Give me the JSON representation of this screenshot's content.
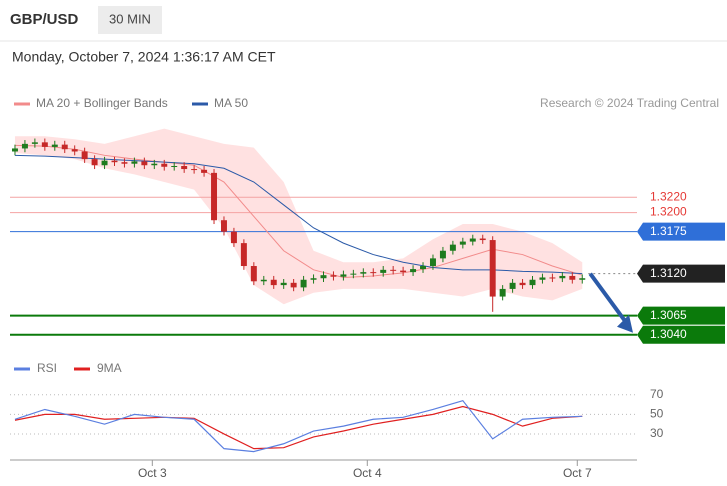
{
  "header": {
    "symbol": "GBP/USD",
    "interval": "30 MIN",
    "timestamp": "Monday, October 7, 2024 1:36:17 AM CET"
  },
  "chart_data": [
    {
      "type": "candlestick",
      "source": "Research © 2024 Trading Central",
      "xlim": [
        -0.5,
        62.5
      ],
      "ylim": [
        1.302,
        1.3354
      ],
      "xticks": [
        {
          "value": 13.8,
          "label": "Oct 3"
        },
        {
          "value": 35.4,
          "label": "Oct 4"
        },
        {
          "value": 56.5,
          "label": "Oct 7"
        }
      ],
      "up_color": "#1e7b1e",
      "down_color": "#c62828",
      "open": [
        1.328,
        1.3284,
        1.329,
        1.3292,
        1.3286,
        1.3289,
        1.3283,
        1.328,
        1.327,
        1.3262,
        1.3268,
        1.3266,
        1.3264,
        1.3267,
        1.3262,
        1.3264,
        1.326,
        1.3261,
        1.3257,
        1.3256,
        1.3252,
        1.319,
        1.3175,
        1.316,
        1.313,
        1.311,
        1.3112,
        1.3105,
        1.3108,
        1.3102,
        1.3112,
        1.3114,
        1.3118,
        1.3116,
        1.3119,
        1.312,
        1.3122,
        1.3121,
        1.3125,
        1.3124,
        1.3122,
        1.3126,
        1.313,
        1.314,
        1.315,
        1.3158,
        1.3162,
        1.3166,
        1.3164,
        1.309,
        1.31,
        1.3108,
        1.3105,
        1.3112,
        1.3115,
        1.3114,
        1.3117,
        1.3112
      ],
      "high": [
        1.3289,
        1.3295,
        1.3297,
        1.3297,
        1.3294,
        1.3294,
        1.3288,
        1.3285,
        1.3275,
        1.3273,
        1.3273,
        1.3271,
        1.3272,
        1.3272,
        1.3269,
        1.3269,
        1.3266,
        1.3266,
        1.3262,
        1.3261,
        1.3257,
        1.3195,
        1.318,
        1.3165,
        1.3135,
        1.3117,
        1.3117,
        1.3113,
        1.3113,
        1.3117,
        1.3119,
        1.3123,
        1.3123,
        1.3124,
        1.3125,
        1.3127,
        1.3127,
        1.313,
        1.313,
        1.3129,
        1.3131,
        1.3135,
        1.3145,
        1.3155,
        1.3163,
        1.3167,
        1.3171,
        1.3171,
        1.3169,
        1.3105,
        1.3113,
        1.3113,
        1.3117,
        1.312,
        1.312,
        1.3122,
        1.3122,
        1.3119
      ],
      "low": [
        1.3275,
        1.3279,
        1.3285,
        1.3281,
        1.3281,
        1.3278,
        1.3275,
        1.3265,
        1.3257,
        1.3257,
        1.3261,
        1.3259,
        1.3259,
        1.3257,
        1.3257,
        1.3255,
        1.3255,
        1.3252,
        1.3251,
        1.3247,
        1.3185,
        1.317,
        1.3155,
        1.3125,
        1.3105,
        1.3105,
        1.31,
        1.31,
        1.3097,
        1.3097,
        1.3107,
        1.3109,
        1.3111,
        1.3111,
        1.3114,
        1.3115,
        1.3116,
        1.3116,
        1.3119,
        1.3117,
        1.3117,
        1.3121,
        1.3125,
        1.3135,
        1.3145,
        1.3153,
        1.3157,
        1.3159,
        1.307,
        1.3085,
        1.3095,
        1.31,
        1.31,
        1.3107,
        1.3109,
        1.3109,
        1.3107,
        1.3107
      ],
      "close": [
        1.3284,
        1.329,
        1.3292,
        1.3286,
        1.3289,
        1.3283,
        1.328,
        1.327,
        1.3262,
        1.3268,
        1.3266,
        1.3264,
        1.3267,
        1.3262,
        1.3264,
        1.326,
        1.3261,
        1.3257,
        1.3256,
        1.3252,
        1.319,
        1.3175,
        1.316,
        1.313,
        1.311,
        1.3112,
        1.3105,
        1.3108,
        1.3102,
        1.3112,
        1.3114,
        1.3118,
        1.3116,
        1.3119,
        1.312,
        1.3122,
        1.3121,
        1.3125,
        1.3124,
        1.3122,
        1.3126,
        1.313,
        1.314,
        1.315,
        1.3158,
        1.3162,
        1.3166,
        1.3164,
        1.309,
        1.31,
        1.3108,
        1.3105,
        1.3112,
        1.3115,
        1.3114,
        1.3117,
        1.3112,
        1.3114
      ],
      "series_x": [
        0,
        3,
        6,
        9,
        12,
        15,
        18,
        21,
        24,
        27,
        30,
        33,
        36,
        39,
        42,
        45,
        48,
        51,
        54,
        57
      ],
      "series": [
        {
          "name": "MA 20 + Bollinger Bands",
          "color": "#f28b8b",
          "band_color": "#ffd9d9",
          "values": [
            1.3288,
            1.3287,
            1.3283,
            1.3275,
            1.327,
            1.3266,
            1.3262,
            1.324,
            1.3195,
            1.315,
            1.3125,
            1.3115,
            1.3117,
            1.3121,
            1.3128,
            1.314,
            1.3152,
            1.3145,
            1.313,
            1.3118
          ],
          "upper": [
            1.33,
            1.33,
            1.3296,
            1.329,
            1.33,
            1.331,
            1.33,
            1.329,
            1.3285,
            1.324,
            1.315,
            1.3135,
            1.3135,
            1.314,
            1.3165,
            1.3185,
            1.3185,
            1.3175,
            1.316,
            1.3135
          ],
          "lower": [
            1.3278,
            1.3275,
            1.327,
            1.3258,
            1.325,
            1.324,
            1.323,
            1.318,
            1.3105,
            1.308,
            1.3095,
            1.31,
            1.31,
            1.31,
            1.3095,
            1.309,
            1.31,
            1.309,
            1.3085,
            1.31
          ]
        },
        {
          "name": "MA 50",
          "color": "#2b5aa8",
          "values": [
            1.3275,
            1.3274,
            1.3272,
            1.327,
            1.3268,
            1.3266,
            1.3264,
            1.3258,
            1.324,
            1.321,
            1.318,
            1.316,
            1.3145,
            1.3135,
            1.3128,
            1.3125,
            1.3125,
            1.3123,
            1.3122,
            1.312
          ]
        }
      ],
      "levels": [
        {
          "value": 1.322,
          "label": "1.3220",
          "color": "#e53935",
          "line_color": "#f4a3a3",
          "badge": false,
          "dash": false
        },
        {
          "value": 1.32,
          "label": "1.3200",
          "color": "#e53935",
          "line_color": "#f4a3a3",
          "badge": false,
          "dash": false
        },
        {
          "value": 1.3175,
          "label": "1.3175",
          "color": "#2f6fd8",
          "line_color": "#2f6fd8",
          "badge": true,
          "dash": false
        },
        {
          "value": 1.312,
          "label": "1.3120",
          "color": "#222222",
          "line_color": "#888888",
          "badge": true,
          "dash": true
        },
        {
          "value": 1.3065,
          "label": "1.3065",
          "color": "#0b7a0b",
          "line_color": "#0b7a0b",
          "badge": true,
          "dash": false
        },
        {
          "value": 1.304,
          "label": "1.3040",
          "color": "#0b7a0b",
          "line_color": "#0b7a0b",
          "badge": true,
          "dash": false
        }
      ],
      "arrow_color": "#2b5aa8"
    },
    {
      "type": "line",
      "xlim": [
        -0.5,
        62.5
      ],
      "ylim": [
        8,
        80
      ],
      "yticks": [
        30,
        50,
        70
      ],
      "series_x": [
        0,
        3,
        6,
        9,
        12,
        15,
        18,
        21,
        24,
        27,
        30,
        33,
        36,
        39,
        42,
        45,
        48,
        51,
        54,
        57
      ],
      "series": [
        {
          "name": "RSI",
          "color": "#5b7fe0",
          "values": [
            45,
            55,
            48,
            40,
            50,
            47,
            45,
            15,
            12,
            20,
            33,
            38,
            45,
            47,
            55,
            64,
            25,
            45,
            47,
            48
          ]
        },
        {
          "name": "9MA",
          "color": "#e02020",
          "values": [
            44,
            50,
            50,
            45,
            46,
            47,
            46,
            30,
            15,
            16,
            27,
            33,
            40,
            45,
            50,
            58,
            50,
            38,
            46,
            48
          ]
        }
      ]
    }
  ]
}
